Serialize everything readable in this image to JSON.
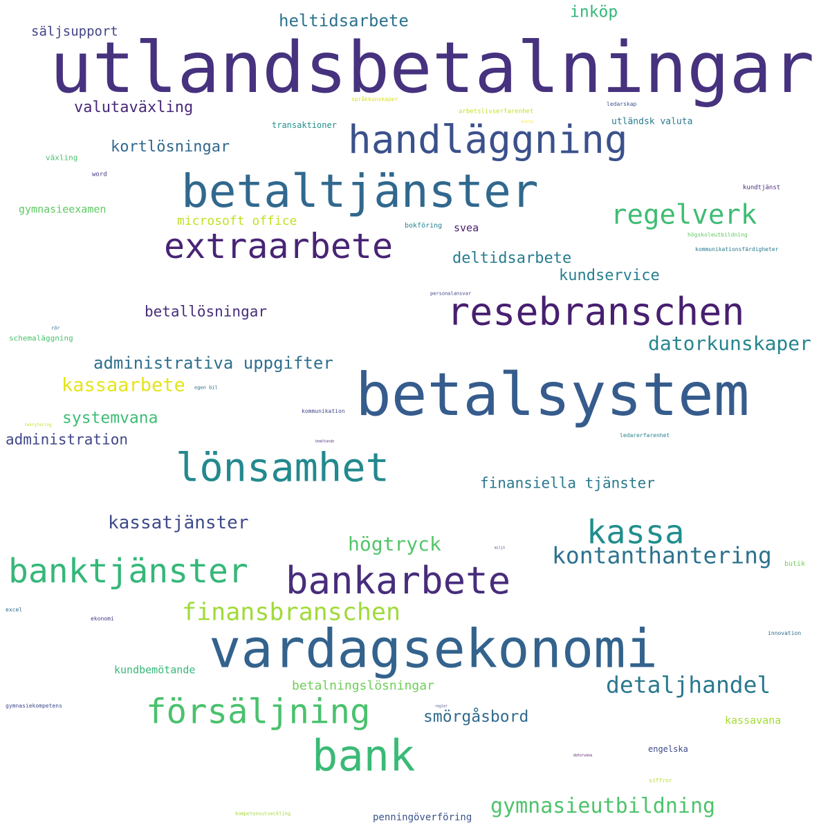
{
  "words": [
    {
      "text": "utlandsbetalningar",
      "color": "#46327e"
    },
    {
      "text": "betalsystem",
      "color": "#365c8d"
    },
    {
      "text": "vardagsekonomi",
      "color": "#33638d"
    },
    {
      "text": "betaltjänster",
      "color": "#31688e"
    },
    {
      "text": "handläggning",
      "color": "#3b518b"
    },
    {
      "text": "resebranschen",
      "color": "#481f70"
    },
    {
      "text": "extraarbete",
      "color": "#482475"
    },
    {
      "text": "lönsamhet",
      "color": "#23898e"
    },
    {
      "text": "bankarbete",
      "color": "#472d7b"
    },
    {
      "text": "bank",
      "color": "#3aba76"
    },
    {
      "text": "banktjänster",
      "color": "#35b779"
    },
    {
      "text": "kassa",
      "color": "#218e8d"
    },
    {
      "text": "försäljning",
      "color": "#4ac16d"
    },
    {
      "text": "regelverk",
      "color": "#3fbc73"
    },
    {
      "text": "finansbranschen",
      "color": "#a0da39"
    },
    {
      "text": "kontanthantering",
      "color": "#2c728e"
    },
    {
      "text": "detaljhandel",
      "color": "#2a788e"
    },
    {
      "text": "gymnasieutbildning",
      "color": "#4ec36b"
    },
    {
      "text": "datorkunskaper",
      "color": "#25858e"
    },
    {
      "text": "administrativa uppgifter",
      "color": "#2e6f8e"
    },
    {
      "text": "högtryck",
      "color": "#52c569"
    },
    {
      "text": "kassaarbete",
      "color": "#e5e419"
    },
    {
      "text": "kassatjänster",
      "color": "#3e4a89"
    },
    {
      "text": "heltidsarbete",
      "color": "#2c728e"
    },
    {
      "text": "kortlösningar",
      "color": "#31688e"
    },
    {
      "text": "valutaväxling",
      "color": "#482878"
    },
    {
      "text": "kundservice",
      "color": "#277f8e"
    },
    {
      "text": "deltidsarbete",
      "color": "#287c8e"
    },
    {
      "text": "betallösningar",
      "color": "#472d7b"
    },
    {
      "text": "systemvana",
      "color": "#3dbc74"
    },
    {
      "text": "administration",
      "color": "#404688"
    },
    {
      "text": "finansiella tjänster",
      "color": "#2a788e"
    },
    {
      "text": "smörgåsbord",
      "color": "#306a8e"
    },
    {
      "text": "inköp",
      "color": "#35b779"
    },
    {
      "text": "betalningslösningar",
      "color": "#6ece58"
    },
    {
      "text": "säljsupport",
      "color": "#414487"
    },
    {
      "text": "microsoft office",
      "color": "#c2df23"
    },
    {
      "text": "kundbemötande",
      "color": "#37b878"
    },
    {
      "text": "kassavana",
      "color": "#a5db36"
    },
    {
      "text": "penningöverföring",
      "color": "#3b528b"
    },
    {
      "text": "svea",
      "color": "#481b6d"
    },
    {
      "text": "engelska",
      "color": "#3e4c8a"
    },
    {
      "text": "gymnasieexamen",
      "color": "#5ec962"
    },
    {
      "text": "utländsk valuta",
      "color": "#2a788e"
    },
    {
      "text": "transaktioner",
      "color": "#21918c"
    },
    {
      "text": "växling",
      "color": "#4ac16d"
    },
    {
      "text": "schemaläggning",
      "color": "#4ac16d"
    },
    {
      "text": "bokföring",
      "color": "#26828e"
    },
    {
      "text": "word",
      "color": "#46337e"
    },
    {
      "text": "arbetslivserfarenhet",
      "color": "#c2df23"
    },
    {
      "text": "språkkunskaper",
      "color": "#d8e219"
    },
    {
      "text": "ledarskap",
      "color": "#3b528b"
    },
    {
      "text": "kundtjänst",
      "color": "#482878"
    },
    {
      "text": "högskoleutbildning",
      "color": "#5ec962"
    },
    {
      "text": "kommunikationsfärdigheter",
      "color": "#2a788e"
    },
    {
      "text": "personalansvar",
      "color": "#414487"
    },
    {
      "text": "rör",
      "color": "#2e6e8e"
    },
    {
      "text": "egen bil",
      "color": "#2c728e"
    },
    {
      "text": "kommunikation",
      "color": "#404688"
    },
    {
      "text": "rekrytering",
      "color": "#c2df23"
    },
    {
      "text": "bemötande",
      "color": "#472d7b"
    },
    {
      "text": "ledarerfarenhet",
      "color": "#26828e"
    },
    {
      "text": "butik",
      "color": "#6ece58"
    },
    {
      "text": "excel",
      "color": "#2e6e8e"
    },
    {
      "text": "ekonomi",
      "color": "#443983"
    },
    {
      "text": "innovation",
      "color": "#306a8e"
    },
    {
      "text": "gymnasiekompetens",
      "color": "#3e4a89"
    },
    {
      "text": "kompetensutveckling",
      "color": "#a5db36"
    },
    {
      "text": "siffror",
      "color": "#b5de2b"
    },
    {
      "text": "regler",
      "color": "#414487"
    },
    {
      "text": "energi",
      "color": "#fde725"
    },
    {
      "text": "miljö",
      "color": "#3e4a89"
    },
    {
      "text": "datorvana",
      "color": "#440154"
    }
  ]
}
